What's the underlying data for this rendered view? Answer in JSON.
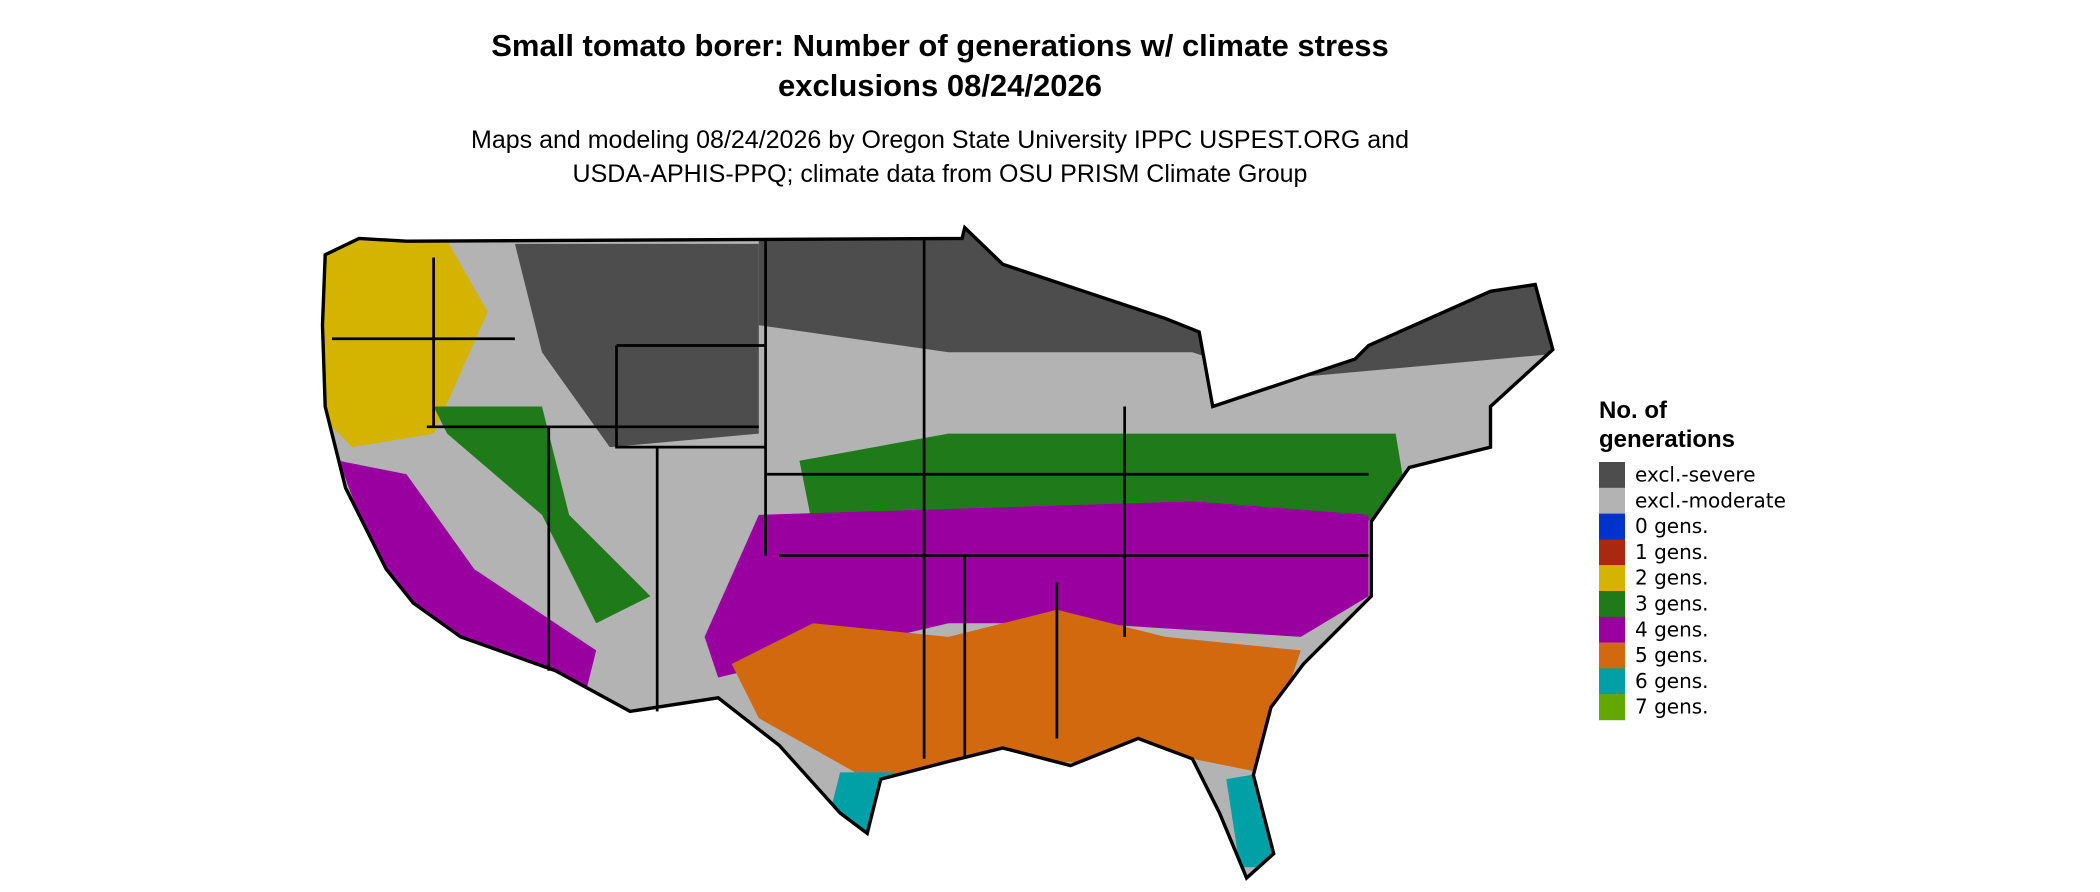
{
  "title": [
    "Small tomato borer: Number of generations w/ climate stress",
    "exclusions 08/24/2026"
  ],
  "subtitle": [
    "Maps and modeling 08/24/2026 by Oregon State University IPPC USPEST.ORG and",
    "USDA-APHIS-PPQ; climate data from OSU PRISM Climate Group"
  ],
  "legend": {
    "title": [
      "No. of",
      "generations"
    ],
    "items": [
      {
        "label": "excl.-severe",
        "color": "#4d4d4d"
      },
      {
        "label": "excl.-moderate",
        "color": "#b3b3b3"
      },
      {
        "label": "0 gens.",
        "color": "#0033cc"
      },
      {
        "label": "1 gens.",
        "color": "#a82810"
      },
      {
        "label": "2 gens.",
        "color": "#d4b400"
      },
      {
        "label": "3 gens.",
        "color": "#1f7a1a"
      },
      {
        "label": "4 gens.",
        "color": "#9a00a0"
      },
      {
        "label": "5 gens.",
        "color": "#d2690e"
      },
      {
        "label": "6 gens.",
        "color": "#00a0a6"
      },
      {
        "label": "7 gens.",
        "color": "#62a800"
      }
    ]
  }
}
